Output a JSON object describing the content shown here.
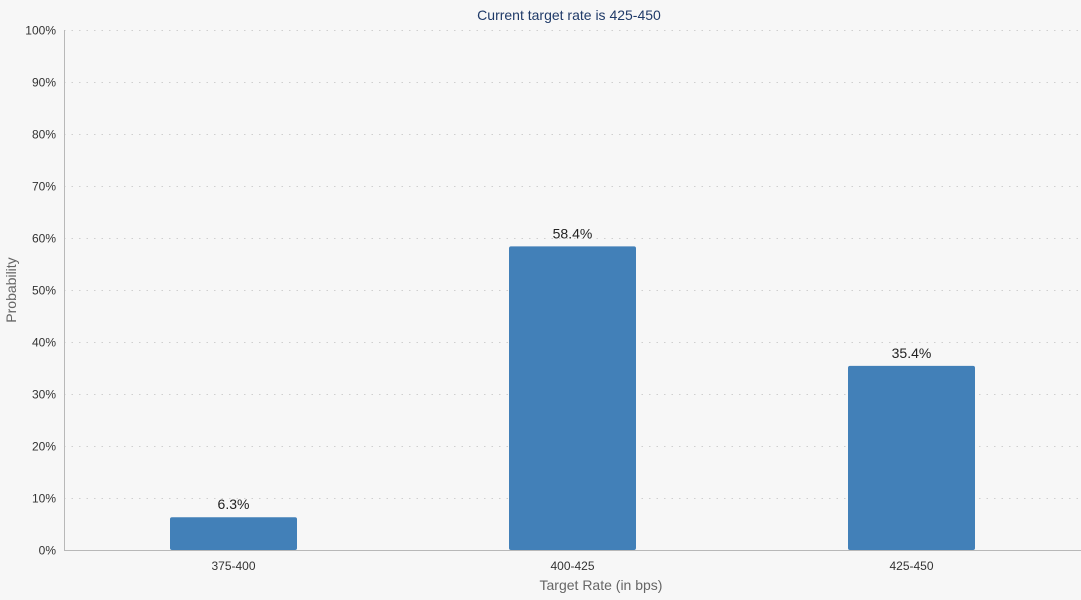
{
  "chart_data": {
    "type": "bar",
    "title": "Current target rate is 425-450",
    "xlabel": "Target Rate (in bps)",
    "ylabel": "Probability",
    "categories": [
      "375-400",
      "400-425",
      "425-450"
    ],
    "values": [
      6.3,
      58.4,
      35.4
    ],
    "value_labels": [
      "6.3%",
      "58.4%",
      "35.4%"
    ],
    "ylim": [
      0,
      100
    ],
    "y_ticks": [
      "0%",
      "10%",
      "20%",
      "30%",
      "40%",
      "50%",
      "60%",
      "70%",
      "80%",
      "90%",
      "100%"
    ],
    "grid": true,
    "legend": "none",
    "bar_color": "#4280b8"
  }
}
